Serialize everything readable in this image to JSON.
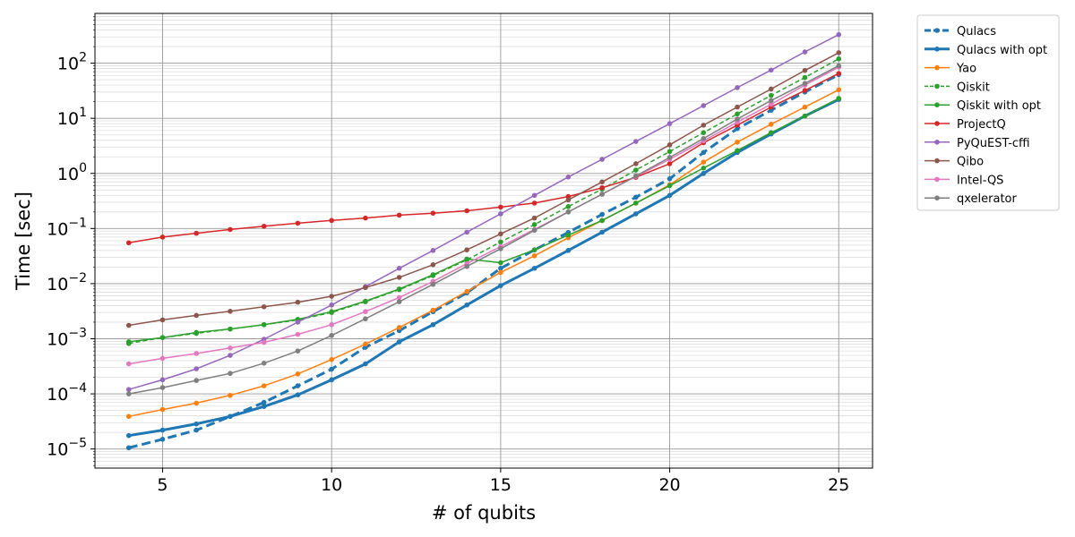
{
  "chart_data": {
    "type": "line",
    "xlabel": "# of qubits",
    "ylabel": "Time [sec]",
    "xlim": [
      3.0,
      26.0
    ],
    "ylim": [
      4.5e-06,
      800
    ],
    "yscale": "log",
    "grid": true,
    "legend_position": "outside-right",
    "xticks": [
      5,
      10,
      15,
      20,
      25
    ],
    "yticks": [
      {
        "value": 1e-05,
        "base": "10",
        "exp": "−5"
      },
      {
        "value": 0.0001,
        "base": "10",
        "exp": "−4"
      },
      {
        "value": 0.001,
        "base": "10",
        "exp": "−3"
      },
      {
        "value": 0.01,
        "base": "10",
        "exp": "−2"
      },
      {
        "value": 0.1,
        "base": "10",
        "exp": "−1"
      },
      {
        "value": 1,
        "base": "10",
        "exp": "0"
      },
      {
        "value": 10,
        "base": "10",
        "exp": "1"
      },
      {
        "value": 100,
        "base": "10",
        "exp": "2"
      }
    ],
    "x": [
      4,
      5,
      6,
      7,
      8,
      9,
      10,
      11,
      12,
      13,
      14,
      15,
      16,
      17,
      18,
      19,
      20,
      21,
      22,
      23,
      24,
      25
    ],
    "series": [
      {
        "name": "Qulacs",
        "color": "#1f77b4",
        "dashed": true,
        "width": 3,
        "values": [
          1.05e-05,
          1.5e-05,
          2.2e-05,
          3.9e-05,
          7e-05,
          0.00014,
          0.00028,
          0.0007,
          0.0014,
          0.0031,
          0.0068,
          0.019,
          0.041,
          0.085,
          0.18,
          0.37,
          0.8,
          2.4,
          6.5,
          14,
          30,
          62
        ]
      },
      {
        "name": "Qulacs with opt",
        "color": "#1f77b4",
        "dashed": false,
        "width": 3,
        "values": [
          1.75e-05,
          2.2e-05,
          2.85e-05,
          3.9e-05,
          5.9e-05,
          9.6e-05,
          0.00018,
          0.00035,
          0.00088,
          0.0018,
          0.0041,
          0.0092,
          0.019,
          0.04,
          0.086,
          0.185,
          0.4,
          1.0,
          2.4,
          5.2,
          11,
          22
        ]
      },
      {
        "name": "Yao",
        "color": "#ff7f0e",
        "dashed": false,
        "width": 1.5,
        "values": [
          3.9e-05,
          5.2e-05,
          6.8e-05,
          9.4e-05,
          0.00014,
          0.00023,
          0.00042,
          0.0008,
          0.0016,
          0.0033,
          0.0072,
          0.016,
          0.032,
          0.068,
          0.14,
          0.29,
          0.62,
          1.6,
          3.7,
          7.8,
          16,
          33
        ]
      },
      {
        "name": "Qiskit",
        "color": "#2ca02c",
        "dashed": true,
        "width": 1.5,
        "values": [
          0.00082,
          0.00105,
          0.00125,
          0.0015,
          0.0018,
          0.0022,
          0.003,
          0.0047,
          0.0078,
          0.014,
          0.027,
          0.057,
          0.118,
          0.25,
          0.52,
          1.15,
          2.5,
          5.5,
          12,
          26,
          55,
          120
        ]
      },
      {
        "name": "Qiskit with opt",
        "color": "#2ca02c",
        "dashed": false,
        "width": 1.5,
        "values": [
          0.00088,
          0.00105,
          0.0013,
          0.0015,
          0.0018,
          0.00225,
          0.0031,
          0.0048,
          0.008,
          0.0145,
          0.028,
          0.024,
          0.041,
          0.076,
          0.14,
          0.29,
          0.6,
          1.25,
          2.6,
          5.5,
          11,
          23
        ]
      },
      {
        "name": "ProjectQ",
        "color": "#d62728",
        "dashed": false,
        "width": 1.5,
        "values": [
          0.055,
          0.07,
          0.082,
          0.096,
          0.11,
          0.125,
          0.14,
          0.155,
          0.175,
          0.19,
          0.21,
          0.245,
          0.29,
          0.38,
          0.55,
          0.85,
          1.5,
          3.6,
          7.5,
          16,
          32,
          65
        ]
      },
      {
        "name": "PyQuEST-cffi",
        "color": "#9467bd",
        "dashed": false,
        "width": 1.5,
        "values": [
          0.00012,
          0.00018,
          0.000285,
          0.0005,
          0.00098,
          0.002,
          0.0041,
          0.0088,
          0.019,
          0.04,
          0.086,
          0.185,
          0.4,
          0.86,
          1.8,
          3.8,
          8.0,
          17,
          36,
          75,
          160,
          330
        ]
      },
      {
        "name": "Qibo",
        "color": "#8c564b",
        "dashed": false,
        "width": 1.5,
        "values": [
          0.00175,
          0.0022,
          0.00265,
          0.00315,
          0.0038,
          0.0046,
          0.0059,
          0.0085,
          0.013,
          0.022,
          0.041,
          0.08,
          0.155,
          0.33,
          0.7,
          1.5,
          3.3,
          7.5,
          16,
          34,
          74,
          155
        ]
      },
      {
        "name": "Intel-QS",
        "color": "#e377c2",
        "dashed": false,
        "width": 1.5,
        "values": [
          0.00035,
          0.00044,
          0.00054,
          0.00068,
          0.00086,
          0.0012,
          0.0018,
          0.0031,
          0.0056,
          0.011,
          0.023,
          0.047,
          0.096,
          0.2,
          0.42,
          0.88,
          1.8,
          3.9,
          8.5,
          18,
          40,
          85
        ]
      },
      {
        "name": "qxelerator",
        "color": "#7f7f7f",
        "dashed": false,
        "width": 1.5,
        "values": [
          0.0001,
          0.00013,
          0.000175,
          0.000235,
          0.00036,
          0.0006,
          0.00115,
          0.0023,
          0.0047,
          0.0097,
          0.0205,
          0.043,
          0.093,
          0.2,
          0.42,
          0.9,
          1.95,
          4.3,
          9.7,
          21,
          43,
          90
        ]
      }
    ]
  }
}
